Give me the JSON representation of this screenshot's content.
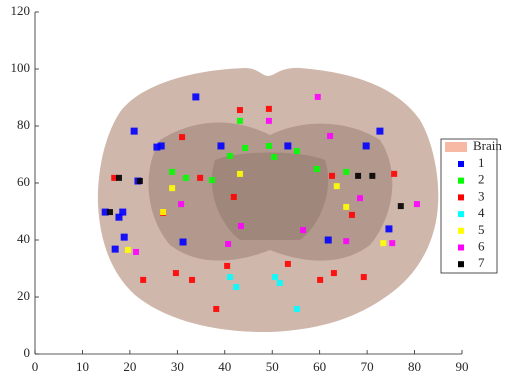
{
  "chart_data": {
    "type": "scatter",
    "xlim": [
      0,
      90
    ],
    "xticks": [
      0,
      10,
      20,
      30,
      40,
      50,
      60,
      70,
      80,
      90
    ],
    "ylim": [
      0,
      120
    ],
    "yticks": [
      0,
      20,
      40,
      60,
      80,
      100,
      120
    ],
    "background": {
      "name": "Brain",
      "color": "#f7b9a3"
    },
    "series": [
      {
        "name": "1",
        "color": "#0000ff",
        "x": [
          33.9,
          20.9,
          39.2,
          53.3,
          72.7,
          26.6,
          21.7,
          14.8,
          18.5,
          17.7,
          18.8,
          16.9,
          31.2,
          61.8,
          74.6,
          69.8,
          25.7
        ],
        "y": [
          90.2,
          78.2,
          73,
          73,
          78.2,
          73,
          60.7,
          49.8,
          49.8,
          48,
          41,
          36.8,
          39.3,
          40,
          43.9,
          73,
          72.6
        ]
      },
      {
        "name": "2",
        "color": "#00ff00",
        "x": [
          43.2,
          41.1,
          44.3,
          49.3,
          55.2,
          50.4,
          28.9,
          37.3,
          31.8,
          59.4,
          65.6
        ],
        "y": [
          81.8,
          69.5,
          72.3,
          73,
          71.2,
          69.1,
          63.9,
          61,
          61.8,
          64.9,
          63.9
        ]
      },
      {
        "name": "3",
        "color": "#ff0000",
        "x": [
          43.2,
          49.3,
          31,
          16.7,
          34.8,
          41.9,
          62.6,
          66.8,
          75.7,
          29.7,
          38.2,
          40.5,
          53.3,
          69.3,
          22.8,
          33.1,
          60.1,
          63,
          27
        ],
        "y": [
          85.6,
          86,
          76.1,
          61.8,
          61.8,
          55.1,
          62.5,
          48.8,
          63.2,
          28.4,
          15.8,
          30.9,
          31.6,
          27,
          26,
          26,
          26,
          28.4,
          49.5
        ]
      },
      {
        "name": "4",
        "color": "#00ffff",
        "x": [
          41.1,
          42.4,
          50.6,
          51.6,
          55.2
        ],
        "y": [
          27,
          23.5,
          27,
          24.9,
          15.8
        ]
      },
      {
        "name": "5",
        "color": "#ffff00",
        "x": [
          27,
          28.9,
          43.2,
          63.6,
          65.6,
          19.6,
          73.4
        ],
        "y": [
          49.8,
          58.2,
          63.2,
          58.9,
          51.6,
          36.5,
          38.9
        ]
      },
      {
        "name": "6",
        "color": "#ff00ff",
        "x": [
          59.6,
          49.3,
          62.2,
          30.8,
          40.7,
          43.4,
          65.6,
          75.3,
          56.5,
          21.3,
          68.5,
          80.5
        ],
        "y": [
          90.2,
          81.8,
          76.5,
          52.6,
          38.6,
          44.9,
          39.6,
          38.9,
          43.5,
          35.8,
          54.7,
          52.6
        ]
      },
      {
        "name": "7",
        "color": "#000000",
        "x": [
          17.7,
          22.1,
          77.1,
          68.1,
          71.1,
          15.8
        ],
        "y": [
          61.8,
          60.7,
          51.9,
          62.5,
          62.5,
          49.8
        ]
      }
    ]
  }
}
